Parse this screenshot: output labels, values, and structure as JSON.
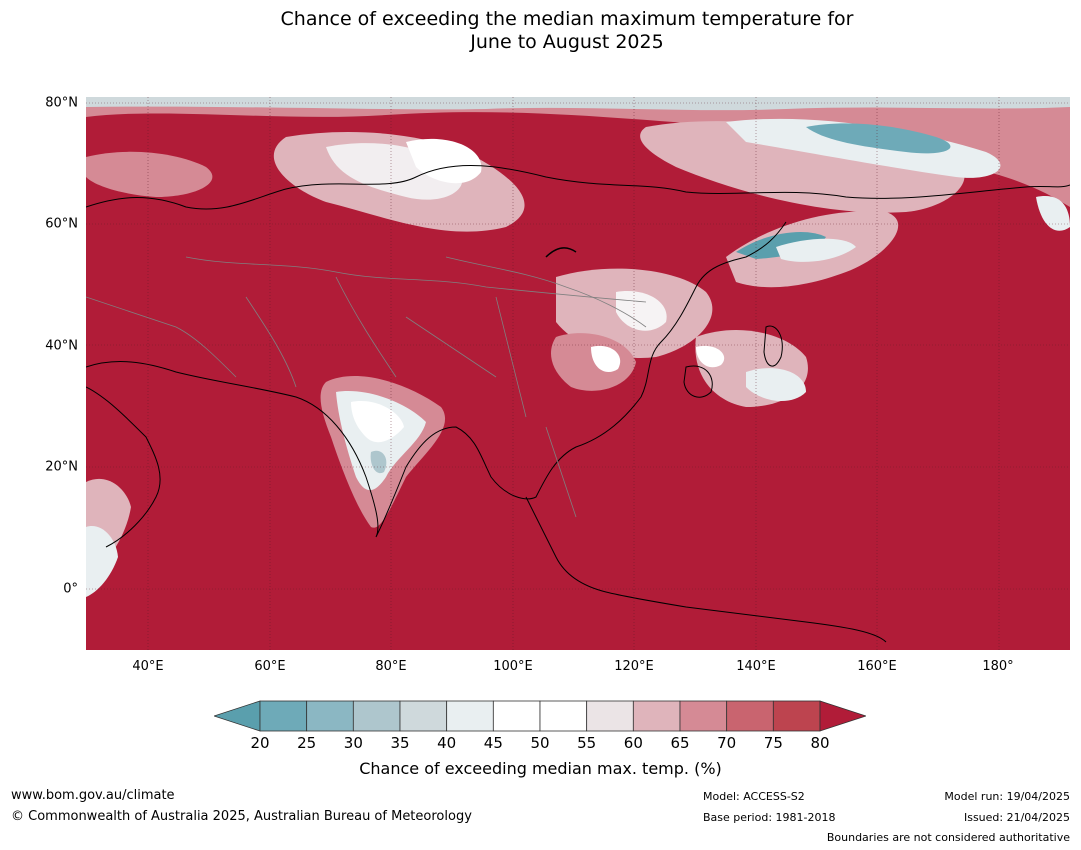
{
  "title": {
    "line1": "Chance of exceeding the median maximum temperature for",
    "line2": "June to August 2025"
  },
  "map": {
    "lat_labels": [
      "80°N",
      "60°N",
      "40°N",
      "20°N",
      "0°"
    ],
    "lon_labels": [
      "40°E",
      "60°E",
      "80°E",
      "100°E",
      "120°E",
      "140°E",
      "160°E",
      "180°"
    ],
    "colors": {
      "dominant": "#b11c38",
      "ocean_land_80plus": "#b11c38"
    }
  },
  "legend": {
    "ticks": [
      "20",
      "25",
      "30",
      "35",
      "40",
      "45",
      "50",
      "55",
      "60",
      "65",
      "70",
      "75",
      "80"
    ],
    "colors": [
      "#5a9fad",
      "#6eaab8",
      "#8bb7c3",
      "#aec6cd",
      "#cfd9dc",
      "#e9eff1",
      "#ffffff",
      "#ffffff",
      "#ebe4e6",
      "#dfb4bb",
      "#d58a95",
      "#c9646f",
      "#bd444f",
      "#b11c38"
    ],
    "label": "Chance of exceeding median max. temp. (%)"
  },
  "footer": {
    "url": "www.bom.gov.au/climate",
    "copyright": "© Commonwealth of Australia 2025, Australian Bureau of Meteorology",
    "model": "Model: ACCESS-S2",
    "base_period": "Base period: 1981-2018",
    "model_run": "Model run: 19/04/2025",
    "issued": "Issued: 21/04/2025",
    "disclaimer": "Boundaries are not considered authoritative"
  }
}
